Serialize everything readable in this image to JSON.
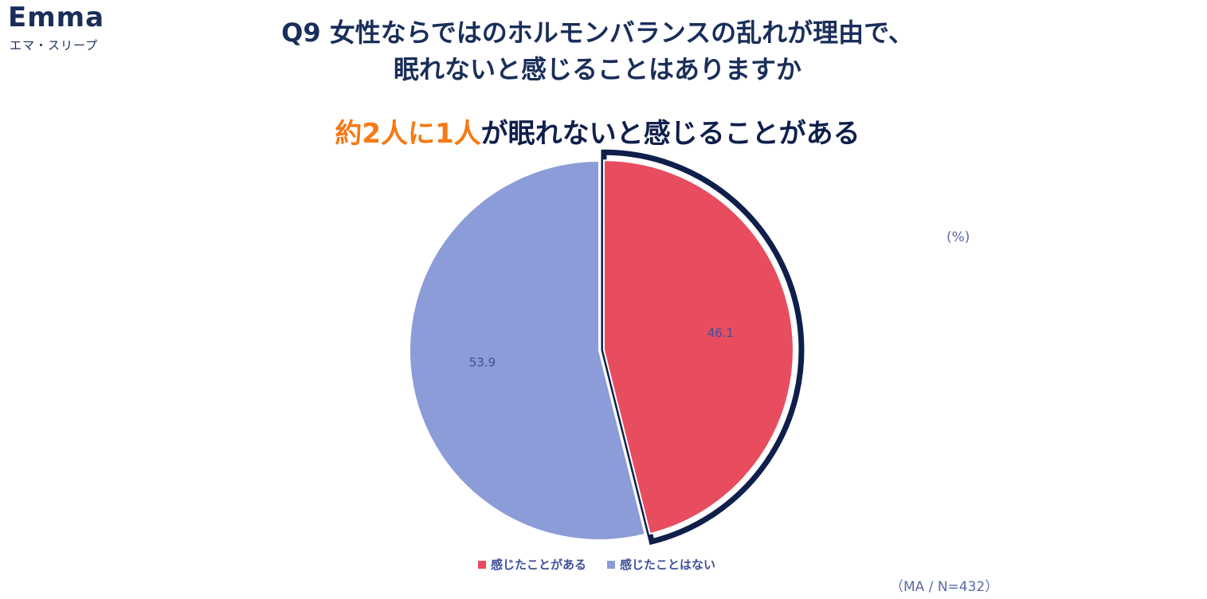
{
  "logo": {
    "wordmark": "Emma",
    "subtitle": "エマ・スリープ"
  },
  "title_line1": "Q9 女性ならではのホルモンバランスの乱れが理由で、",
  "title_line2": "眠れないと感じることはありますか",
  "headline": {
    "accent": "約2人に1人",
    "rest": "が眠れないと感じることがある"
  },
  "unit_label": "(%)",
  "sample_note": "（MA / N=432）",
  "colors": {
    "title": "#1a2e5a",
    "accent": "#f47a14",
    "highlight_border": "#0f1f4b"
  },
  "chart_data": {
    "type": "pie",
    "slices": [
      {
        "label": "感じたことがある",
        "value": 46.1,
        "color": "#e84c5f",
        "highlighted": true
      },
      {
        "label": "感じたことはない",
        "value": 53.9,
        "color": "#8b9cd8",
        "highlighted": false
      }
    ],
    "legend_position": "bottom",
    "start_angle": "12 o'clock, clockwise"
  }
}
